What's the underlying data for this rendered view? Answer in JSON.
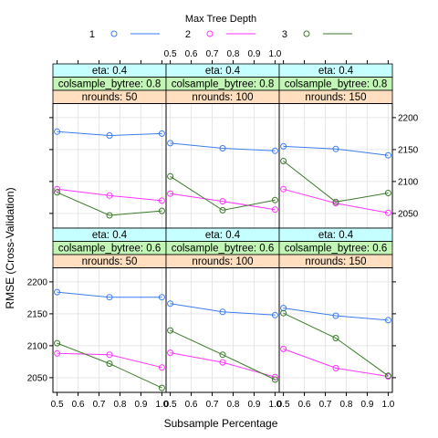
{
  "chart_data": {
    "type": "line",
    "xlabel": "Subsample Percentage",
    "ylabel": "RMSE (Cross-Validation)",
    "legend": {
      "title": "Max Tree Depth",
      "placement": "top",
      "entries": [
        {
          "label": "1",
          "color": "#3b7df0"
        },
        {
          "label": "2",
          "color": "#ff33ff"
        },
        {
          "label": "3",
          "color": "#3b7a2a"
        }
      ]
    },
    "x_ticks": [
      "0.5",
      "0.6",
      "0.7",
      "0.8",
      "0.9",
      "1.0"
    ],
    "x_tick_values": [
      0.5,
      0.6,
      0.7,
      0.8,
      0.9,
      1.0
    ],
    "y_ticks": [
      "2050",
      "2100",
      "2150",
      "2200"
    ],
    "y_tick_values": [
      2050,
      2100,
      2150,
      2200
    ],
    "xlim": [
      0.48,
      1.02
    ],
    "ylim": [
      2027,
      2222
    ],
    "grid": true,
    "panels": [
      {
        "strips": [
          "eta: 0.4",
          "colsample_bytree: 0.8",
          "nrounds:  50"
        ],
        "series": [
          {
            "name": "1",
            "x": [
              0.5,
              0.75,
              1.0
            ],
            "y": [
              2178,
              2172,
              2175
            ]
          },
          {
            "name": "2",
            "x": [
              0.5,
              0.75,
              1.0
            ],
            "y": [
              2088,
              2078,
              2070
            ]
          },
          {
            "name": "3",
            "x": [
              0.5,
              0.75,
              1.0
            ],
            "y": [
              2083,
              2047,
              2054
            ]
          }
        ]
      },
      {
        "strips": [
          "eta: 0.4",
          "colsample_bytree: 0.8",
          "nrounds: 100"
        ],
        "series": [
          {
            "name": "1",
            "x": [
              0.5,
              0.75,
              1.0
            ],
            "y": [
              2160,
              2152,
              2148
            ]
          },
          {
            "name": "2",
            "x": [
              0.5,
              0.75,
              1.0
            ],
            "y": [
              2081,
              2069,
              2056
            ]
          },
          {
            "name": "3",
            "x": [
              0.5,
              0.75,
              1.0
            ],
            "y": [
              2108,
              2055,
              2071
            ]
          }
        ]
      },
      {
        "strips": [
          "eta: 0.4",
          "colsample_bytree: 0.8",
          "nrounds: 150"
        ],
        "series": [
          {
            "name": "1",
            "x": [
              0.5,
              0.75,
              1.0
            ],
            "y": [
              2155,
              2151,
              2141
            ]
          },
          {
            "name": "2",
            "x": [
              0.5,
              0.75,
              1.0
            ],
            "y": [
              2088,
              2066,
              2051
            ]
          },
          {
            "name": "3",
            "x": [
              0.5,
              0.75,
              1.0
            ],
            "y": [
              2132,
              2068,
              2082
            ]
          }
        ]
      },
      {
        "strips": [
          "eta: 0.4",
          "colsample_bytree: 0.6",
          "nrounds:  50"
        ],
        "series": [
          {
            "name": "1",
            "x": [
              0.5,
              0.75,
              1.0
            ],
            "y": [
              2184,
              2176,
              2176
            ]
          },
          {
            "name": "2",
            "x": [
              0.5,
              0.75,
              1.0
            ],
            "y": [
              2088,
              2086,
              2066
            ]
          },
          {
            "name": "3",
            "x": [
              0.5,
              0.75,
              1.0
            ],
            "y": [
              2104,
              2072,
              2034
            ]
          }
        ]
      },
      {
        "strips": [
          "eta: 0.4",
          "colsample_bytree: 0.6",
          "nrounds: 100"
        ],
        "series": [
          {
            "name": "1",
            "x": [
              0.5,
              0.75,
              1.0
            ],
            "y": [
              2166,
              2153,
              2148
            ]
          },
          {
            "name": "2",
            "x": [
              0.5,
              0.75,
              1.0
            ],
            "y": [
              2089,
              2074,
              2051
            ]
          },
          {
            "name": "3",
            "x": [
              0.5,
              0.75,
              1.0
            ],
            "y": [
              2124,
              2086,
              2047
            ]
          }
        ]
      },
      {
        "strips": [
          "eta: 0.4",
          "colsample_bytree: 0.6",
          "nrounds: 150"
        ],
        "series": [
          {
            "name": "1",
            "x": [
              0.5,
              0.75,
              1.0
            ],
            "y": [
              2159,
              2147,
              2140
            ]
          },
          {
            "name": "2",
            "x": [
              0.5,
              0.75,
              1.0
            ],
            "y": [
              2095,
              2065,
              2052
            ]
          },
          {
            "name": "3",
            "x": [
              0.5,
              0.75,
              1.0
            ],
            "y": [
              2151,
              2112,
              2053
            ]
          }
        ]
      }
    ]
  },
  "strip_colors": [
    "#c6ffff",
    "#c2f5b6",
    "#ffdfbf"
  ]
}
